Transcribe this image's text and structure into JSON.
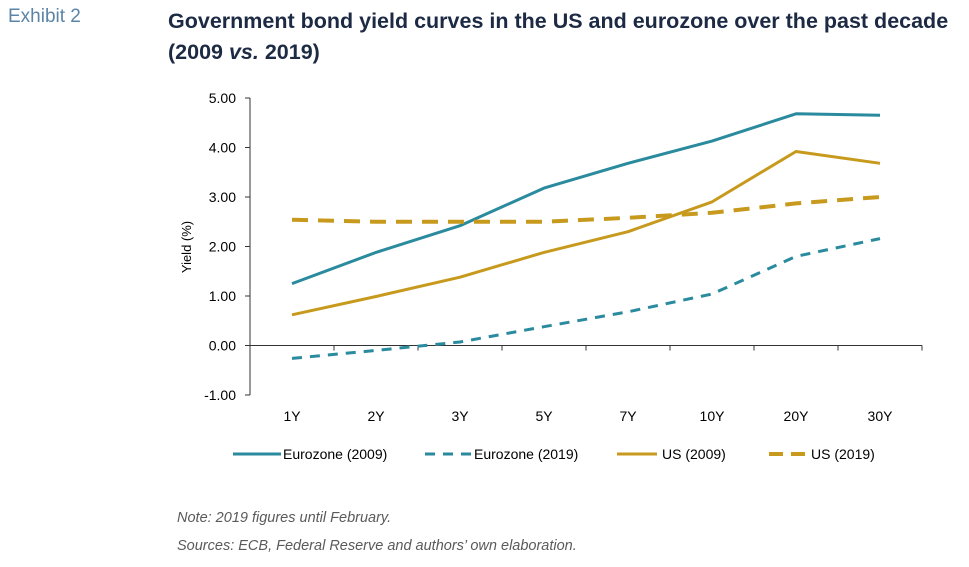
{
  "exhibit_label": "Exhibit 2",
  "title": {
    "part1": "Government bond yield curves in the US and eurozone over the past decade (2009 ",
    "italic": "vs.",
    "part2": " 2019)"
  },
  "notes": {
    "note": "Note: 2019 figures until February.",
    "sources": "Sources: ECB, Federal Reserve and authors’ own elaboration."
  },
  "chart_data": {
    "type": "line",
    "categories": [
      "1Y",
      "2Y",
      "3Y",
      "5Y",
      "7Y",
      "10Y",
      "20Y",
      "30Y"
    ],
    "ylabel": "Yield (%)",
    "xlabel": "",
    "ylim": [
      -1.0,
      5.0
    ],
    "yticks": [
      "5.00",
      "4.00",
      "3.00",
      "2.00",
      "1.00",
      "0.00",
      "-1.00"
    ],
    "ytick_values": [
      5,
      4,
      3,
      2,
      1,
      0,
      -1
    ],
    "legend_position": "bottom",
    "grid": false,
    "series": [
      {
        "name": "Eurozone (2009)",
        "color": "#2a8a9e",
        "dash": "solid",
        "values": [
          1.25,
          1.88,
          2.42,
          3.18,
          3.68,
          4.13,
          4.68,
          4.65
        ]
      },
      {
        "name": "Eurozone (2019)",
        "color": "#2a8a9e",
        "dash": "dashed",
        "values": [
          -0.26,
          -0.1,
          0.07,
          0.38,
          0.68,
          1.04,
          1.8,
          2.16
        ]
      },
      {
        "name": "US (2009)",
        "color": "#c79a1e",
        "dash": "solid",
        "values": [
          0.62,
          0.99,
          1.38,
          1.88,
          2.3,
          2.9,
          3.92,
          3.68
        ]
      },
      {
        "name": "US (2019)",
        "color": "#c79a1e",
        "dash": "dashed-thick",
        "values": [
          2.54,
          2.5,
          2.5,
          2.5,
          2.58,
          2.68,
          2.87,
          3.0
        ]
      }
    ]
  }
}
